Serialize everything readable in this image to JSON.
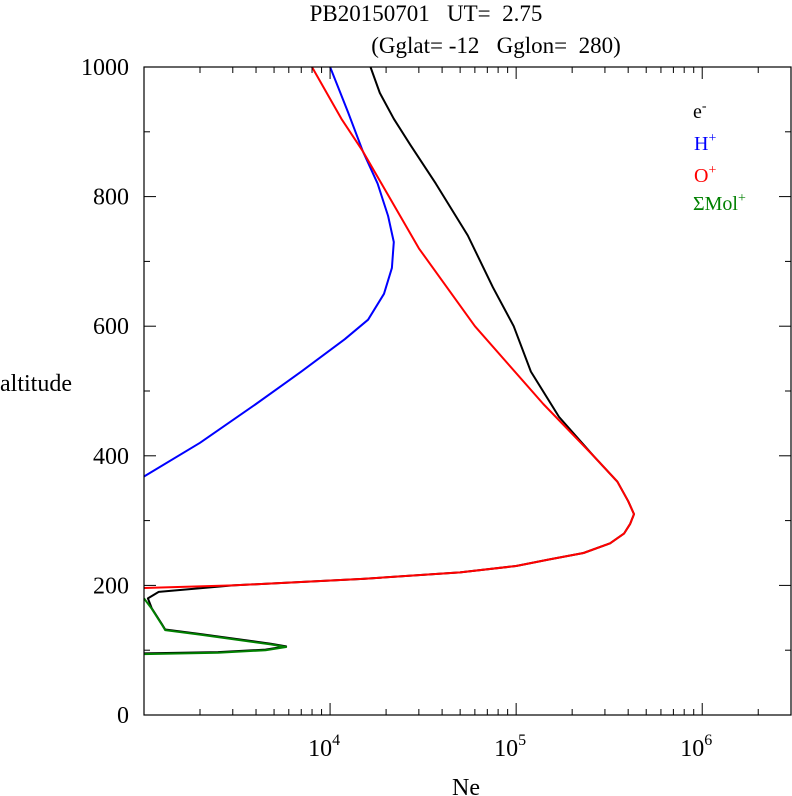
{
  "chart_data": {
    "type": "line",
    "title": "PB20150701   UT=  2.75",
    "subtitle": "(Gglat= -12   Gglon=  280)",
    "xlabel": "Ne",
    "ylabel": "altitude",
    "x_scale": "log",
    "xlim": [
      1000,
      3000000
    ],
    "ylim": [
      0,
      1000
    ],
    "x_ticks": [
      {
        "value": 10000,
        "base": "10",
        "exp": "4"
      },
      {
        "value": 100000,
        "base": "10",
        "exp": "5"
      },
      {
        "value": 1000000,
        "base": "10",
        "exp": "6"
      }
    ],
    "y_ticks": [
      "0",
      "200",
      "400",
      "600",
      "800",
      "1000"
    ],
    "legend_position": "top-right",
    "series": [
      {
        "name": "e",
        "name_sup": "-",
        "color": "#000000",
        "points": [
          [
            1000,
            95
          ],
          [
            2500,
            97
          ],
          [
            4500,
            101
          ],
          [
            5800,
            106
          ],
          [
            4800,
            110
          ],
          [
            2000,
            125
          ],
          [
            1300,
            132
          ],
          [
            1250,
            140
          ],
          [
            1100,
            165
          ],
          [
            1050,
            180
          ],
          [
            1200,
            190
          ],
          [
            3000,
            200
          ],
          [
            15000,
            210
          ],
          [
            50000,
            220
          ],
          [
            100000,
            230
          ],
          [
            150000,
            240
          ],
          [
            230000,
            250
          ],
          [
            320000,
            265
          ],
          [
            380000,
            280
          ],
          [
            410000,
            295
          ],
          [
            430000,
            310
          ],
          [
            400000,
            330
          ],
          [
            350000,
            360
          ],
          [
            260000,
            400
          ],
          [
            170000,
            460
          ],
          [
            120000,
            530
          ],
          [
            97000,
            600
          ],
          [
            75000,
            660
          ],
          [
            55000,
            740
          ],
          [
            37000,
            820
          ],
          [
            27000,
            880
          ],
          [
            22000,
            920
          ],
          [
            18500,
            960
          ],
          [
            16500,
            1000
          ]
        ]
      },
      {
        "name": "H",
        "name_sup": "+",
        "color": "#0000ff",
        "points": [
          [
            1000,
            368
          ],
          [
            2000,
            420
          ],
          [
            4000,
            480
          ],
          [
            7000,
            530
          ],
          [
            12000,
            580
          ],
          [
            16000,
            610
          ],
          [
            19500,
            650
          ],
          [
            21500,
            690
          ],
          [
            22000,
            730
          ],
          [
            20500,
            770
          ],
          [
            18000,
            820
          ],
          [
            15000,
            870
          ],
          [
            12500,
            930
          ],
          [
            11000,
            970
          ],
          [
            10000,
            1000
          ]
        ]
      },
      {
        "name": "O",
        "name_sup": "+",
        "color": "#ff0000",
        "points": [
          [
            1000,
            196
          ],
          [
            3000,
            200
          ],
          [
            15000,
            210
          ],
          [
            50000,
            220
          ],
          [
            100000,
            230
          ],
          [
            150000,
            240
          ],
          [
            230000,
            250
          ],
          [
            320000,
            265
          ],
          [
            380000,
            280
          ],
          [
            410000,
            295
          ],
          [
            430000,
            310
          ],
          [
            400000,
            330
          ],
          [
            350000,
            360
          ],
          [
            260000,
            400
          ],
          [
            140000,
            480
          ],
          [
            60000,
            600
          ],
          [
            30000,
            720
          ],
          [
            15000,
            870
          ],
          [
            11500,
            920
          ],
          [
            8000,
            1000
          ]
        ]
      },
      {
        "name": "ΣMol",
        "name_sup": "+",
        "color": "#008000",
        "points": [
          [
            1000,
            94
          ],
          [
            2500,
            96
          ],
          [
            4500,
            100
          ],
          [
            5800,
            105
          ],
          [
            4800,
            109
          ],
          [
            2000,
            124
          ],
          [
            1300,
            131
          ],
          [
            1250,
            139
          ],
          [
            1100,
            164
          ],
          [
            1000,
            180
          ]
        ]
      }
    ]
  }
}
